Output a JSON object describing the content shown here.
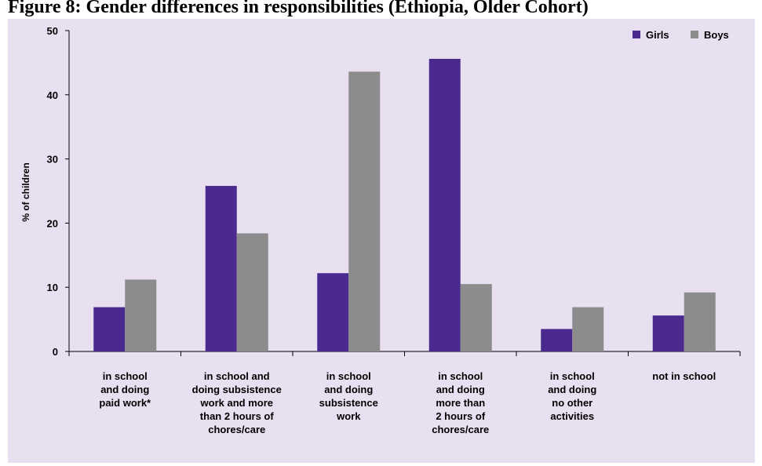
{
  "figure": {
    "title": "Figure 8: Gender differences in responsibilities (Ethiopia, Older Cohort)"
  },
  "colors": {
    "panel_background": "#e8e0f0",
    "girls": "#4b2a8f",
    "boys": "#8c8c8c",
    "axis": "#000000"
  },
  "chart_data": {
    "type": "bar",
    "ylabel": "% of children",
    "xlabel": "",
    "ylim": [
      0,
      50
    ],
    "yticks": [
      0,
      10,
      20,
      30,
      40,
      50
    ],
    "grid": false,
    "legend_position": "top-right",
    "categories": [
      [
        "in school",
        "and doing",
        "paid work*"
      ],
      [
        "in school and",
        "doing subsistence",
        "work and more",
        "than 2 hours of",
        "chores/care"
      ],
      [
        "in school",
        "and doing",
        "subsistence",
        "work"
      ],
      [
        "in school",
        "and doing",
        "more than",
        "2 hours of",
        "chores/care"
      ],
      [
        "in school",
        "and doing",
        "no other",
        "activities"
      ],
      [
        "not in school"
      ]
    ],
    "series": [
      {
        "name": "Girls",
        "values": [
          6.9,
          25.8,
          12.2,
          45.6,
          3.5,
          5.6
        ]
      },
      {
        "name": "Boys",
        "values": [
          11.2,
          18.4,
          43.6,
          10.5,
          6.9,
          9.2
        ]
      }
    ]
  }
}
